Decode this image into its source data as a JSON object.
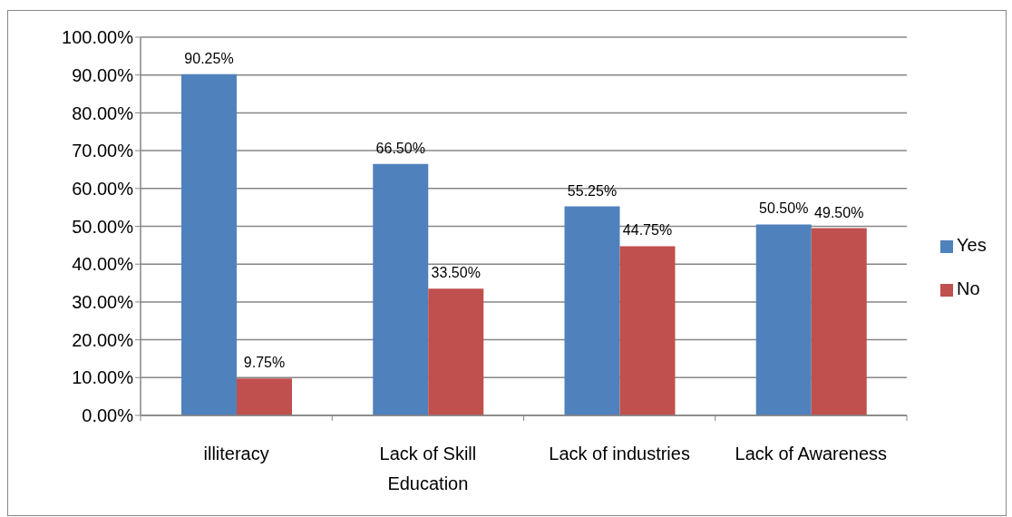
{
  "chart_data": {
    "type": "bar",
    "categories": [
      "illiteracy",
      "Lack of Skill Education",
      "Lack of industries",
      "Lack of Awareness"
    ],
    "series": [
      {
        "name": "Yes",
        "color": "#4f81bd",
        "values": [
          90.25,
          66.5,
          55.25,
          50.5
        ],
        "value_labels": [
          "90.25%",
          "66.50%",
          "55.25%",
          "50.50%"
        ]
      },
      {
        "name": "No",
        "color": "#c0504d",
        "values": [
          9.75,
          33.5,
          44.75,
          49.5
        ],
        "value_labels": [
          "9.75%",
          "33.50%",
          "44.75%",
          "49.50%"
        ]
      }
    ],
    "ylim": [
      0,
      100
    ],
    "yticks": [
      {
        "value": 0,
        "label": "0.00%"
      },
      {
        "value": 10,
        "label": "10.00%"
      },
      {
        "value": 20,
        "label": "20.00%"
      },
      {
        "value": 30,
        "label": "30.00%"
      },
      {
        "value": 40,
        "label": "40.00%"
      },
      {
        "value": 50,
        "label": "50.00%"
      },
      {
        "value": 60,
        "label": "60.00%"
      },
      {
        "value": 70,
        "label": "70.00%"
      },
      {
        "value": 80,
        "label": "80.00%"
      },
      {
        "value": 90,
        "label": "90.00%"
      },
      {
        "value": 100,
        "label": "100.00%"
      }
    ],
    "grid": "y",
    "legend": "right"
  }
}
